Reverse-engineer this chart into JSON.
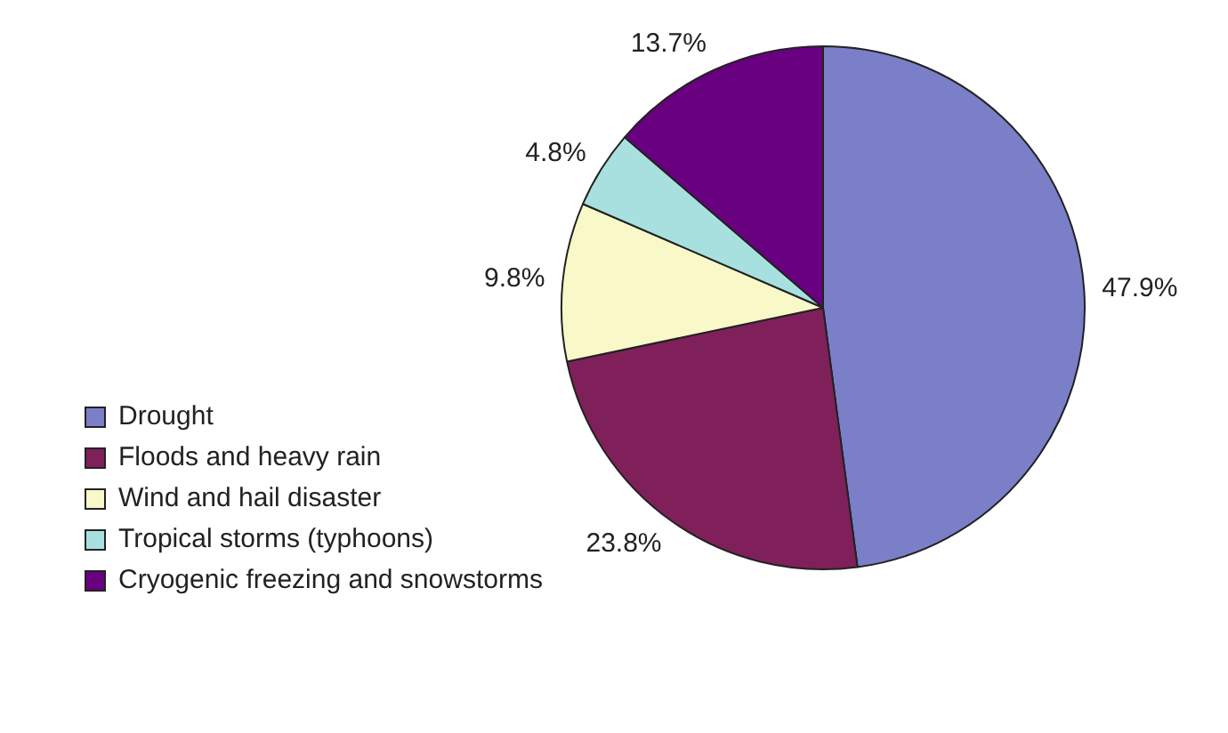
{
  "chart_data": {
    "type": "pie",
    "categories": [
      "Drought",
      "Floods and heavy rain",
      "Wind and hail disaster",
      "Tropical storms (typhoons)",
      "Cryogenic freezing and snowstorms"
    ],
    "values": [
      47.9,
      23.8,
      9.8,
      4.8,
      13.7
    ],
    "colors": [
      "#7b7fc8",
      "#80205a",
      "#f8f8c8",
      "#a8e0e0",
      "#680080"
    ],
    "value_labels": [
      "47.9%",
      "23.8%",
      "9.8%",
      "4.8%",
      "13.7%"
    ],
    "legend": "bottom left"
  }
}
